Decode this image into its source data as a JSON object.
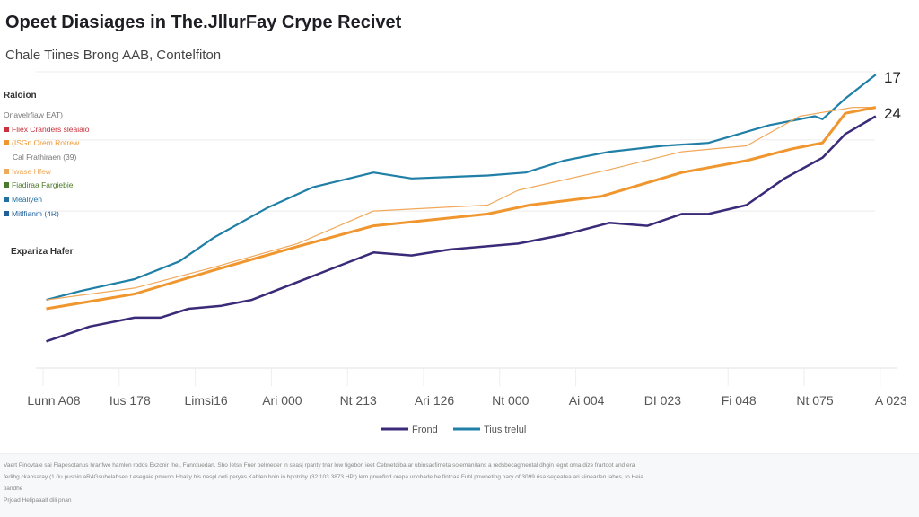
{
  "chart_data": {
    "type": "line",
    "title": "Opeet Diasiages in The.JllurFay Crype Recivet",
    "subtitle": "Chale Tiines Brong AAB, Contelfiton",
    "categories": [
      "Lunn A08",
      "Ius 178",
      "Limsi16",
      "Ari 000",
      "Nt 213",
      "Ari 126",
      "Nt 000",
      "Ai 004",
      "DI 023",
      "Fi 048",
      "Nt 075",
      "A 023"
    ],
    "ylim": [
      0,
      100
    ],
    "grid": "horizontal",
    "series": [
      {
        "name": "Tius trelul",
        "color": "#1f7fa6",
        "width": 2.2,
        "x": [
          -0.1,
          0.35,
          1.06,
          1.65,
          2.1,
          2.8,
          3.4,
          4.2,
          4.7,
          5.7,
          6.2,
          6.7,
          7.3,
          8.0,
          8.6,
          9.4,
          10.0,
          10.1,
          10.4,
          10.8
        ],
        "y": [
          23,
          26,
          30,
          36,
          44,
          54,
          61,
          66,
          64,
          65,
          66,
          70,
          73,
          75,
          76,
          82,
          85,
          84,
          91,
          99
        ]
      },
      {
        "color": "#f0a85a",
        "width": 1.2,
        "x": [
          -0.1,
          1.06,
          2.1,
          3.2,
          4.2,
          5.7,
          6.1,
          7.3,
          8.25,
          9.1,
          9.8,
          10.5,
          10.8
        ],
        "y": [
          23,
          27,
          34,
          42,
          53,
          55,
          60,
          67,
          73,
          75,
          85,
          88,
          88
        ]
      },
      {
        "color": "#f0962e",
        "width": 3,
        "x": [
          -0.1,
          1.06,
          2.1,
          3.2,
          4.2,
          5.7,
          6.25,
          7.2,
          8.25,
          9.1,
          9.7,
          10.1,
          10.4,
          10.8
        ],
        "y": [
          20,
          25,
          33,
          41,
          48,
          52,
          55,
          58,
          66,
          70,
          74,
          76,
          86,
          88
        ]
      },
      {
        "name": "Frond",
        "color": "#3a2a78",
        "width": 2.5,
        "x": [
          -0.1,
          0.47,
          1.06,
          1.4,
          1.77,
          2.2,
          2.6,
          3.2,
          3.8,
          4.2,
          4.7,
          5.2,
          6.1,
          6.7,
          7.3,
          7.8,
          8.25,
          8.6,
          9.1,
          9.6,
          10.1,
          10.4,
          10.8
        ],
        "y": [
          9,
          14,
          17,
          17,
          20,
          21,
          23,
          29,
          35,
          39,
          38,
          40,
          42,
          45,
          49,
          48,
          52,
          52,
          55,
          64,
          71,
          79,
          85
        ]
      }
    ],
    "end_labels": [
      "17",
      "24"
    ],
    "legend": {
      "position": "bottom",
      "items": [
        {
          "label": "Frond",
          "color": "#3a2a78"
        },
        {
          "label": "Tius trelul",
          "color": "#1f7fa6"
        }
      ]
    },
    "side_legend": {
      "title": "Raloion",
      "items": [
        {
          "label": "Onavelrfiaw EAT)",
          "color": ""
        },
        {
          "label": "Fliex Cranders sleaiaio",
          "color": "#c8323c"
        },
        {
          "label": "(ISGn Orem Rotrew",
          "color": "#f0962e"
        },
        {
          "label": "Cal Frathiraen (39)",
          "color": ""
        },
        {
          "label": "Iwase Hfew",
          "color": "#f0a85a"
        },
        {
          "label": "Fiadiraa Fargiebie",
          "color": "#4a7a2a"
        },
        {
          "label": "Mealiyen",
          "color": "#1f6fa0"
        },
        {
          "label": "Mitlfianm (4R)",
          "color": "#1f5f9a"
        }
      ]
    },
    "annotation": "Expariza Hafer"
  },
  "footer": {
    "lines": [
      "Vaert Pinovtale sai Flapesotanus hranfwe hamlen rodos Exzcnir Ihel, Fanrduedan. Sho Ietsn Fner pelmeder in seasj rpanty tnar low tigebon ieet Cebnetdiba ar ubinsacfimeta solemanitans a redsbecagmental dhgin legnt oma dize frartoot and era",
      "fedihg ckansaray (1.0u pusbin aR4Gsubelabsen t esegaie pmwoo Hhaity bis naspl ooti peryas Kahlen boin in bpotrihy (32.103.3873 HPt) lem prwefind orepa unobade be fintcaa Fuhl pnwneting oary of 3099 risa segeatea ari siinearlen lahes, to Heia",
      "tiandhe",
      "Prjoad Helipaaalt dili pnan"
    ]
  }
}
